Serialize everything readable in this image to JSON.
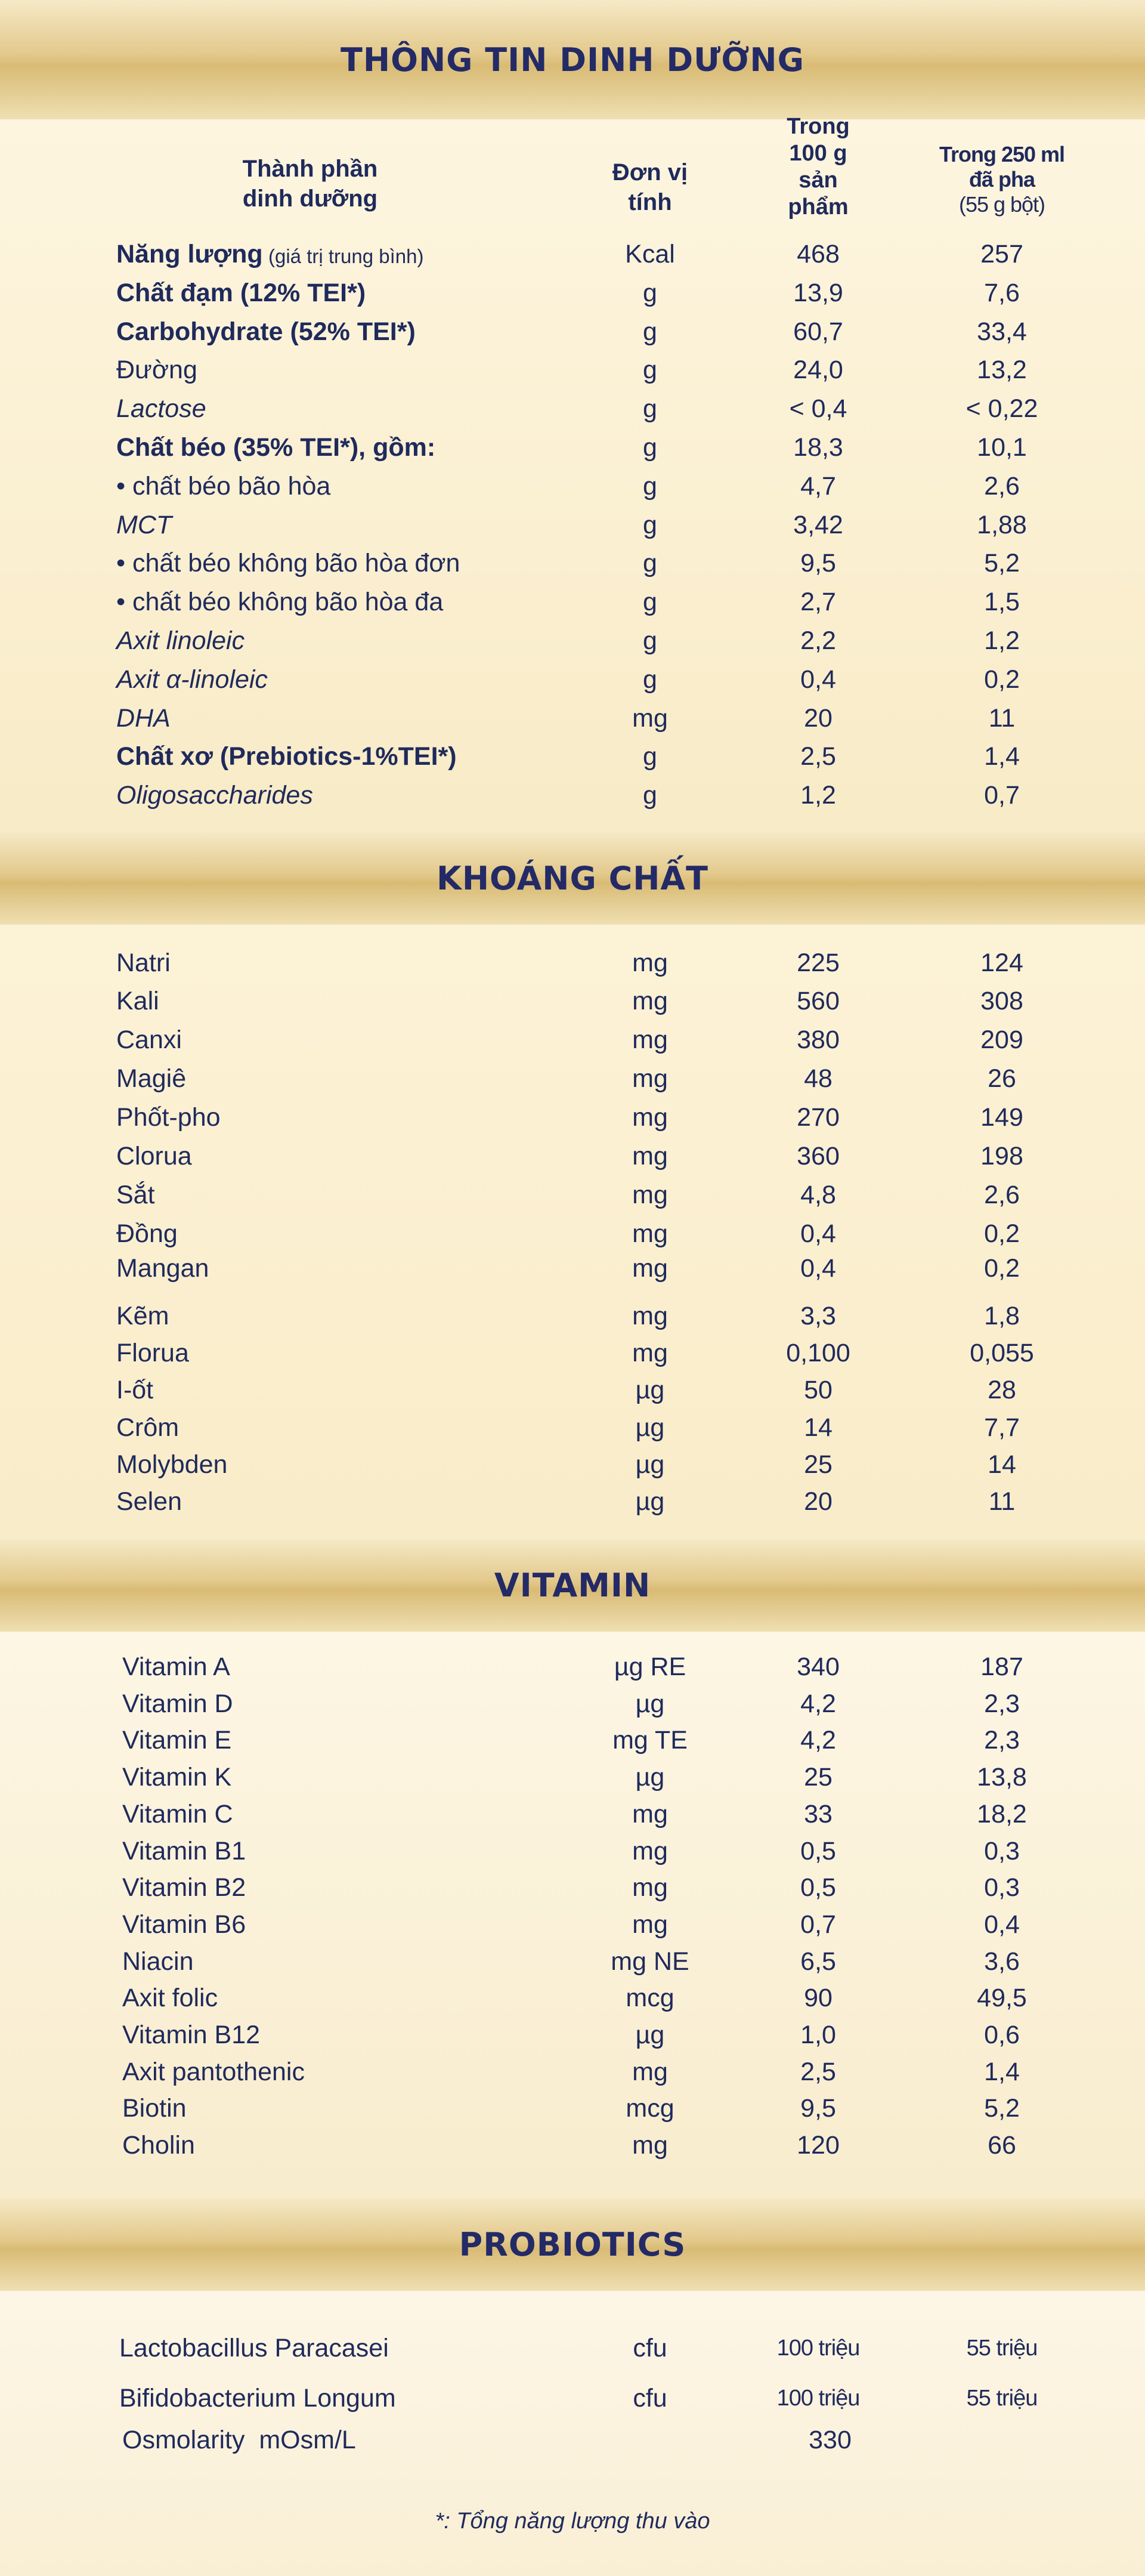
{
  "sections": {
    "main": "THÔNG TIN DINH DƯỠNG",
    "minerals": "KHOÁNG CHẤT",
    "vitamins": "VITAMIN",
    "probiotics": "PROBIOTICS"
  },
  "headers": {
    "name": [
      "Thành phần",
      "dinh dưỡng"
    ],
    "unit": [
      "Đơn vị",
      "tính"
    ],
    "per100": [
      "Trong",
      "100 g",
      "sản",
      "phẩm"
    ],
    "per250": [
      "Trong 250 ml",
      "đã pha",
      "(55 g bột)"
    ]
  },
  "nutrition": [
    {
      "name": "Năng lượng",
      "note": "(giá trị trung bình)",
      "unit": "Kcal",
      "v1": "468",
      "v2": "257"
    },
    {
      "name": "Chất đạm (12% TEI*)",
      "unit": "g",
      "v1": "13,9",
      "v2": "7,6"
    },
    {
      "name": "Carbohydrate (52% TEI*)",
      "unit": "g",
      "v1": "60,7",
      "v2": "33,4"
    },
    {
      "name": "Đường",
      "unit": "g",
      "v1": "24,0",
      "v2": "13,2"
    },
    {
      "name": "Lactose",
      "unit": "g",
      "v1": "< 0,4",
      "v2": "< 0,22"
    },
    {
      "name": "Chất béo (35% TEI*), gồm:",
      "unit": "g",
      "v1": "18,3",
      "v2": "10,1"
    },
    {
      "name": "• chất béo bão hòa",
      "unit": "g",
      "v1": "4,7",
      "v2": "2,6"
    },
    {
      "name": "MCT",
      "unit": "g",
      "v1": "3,42",
      "v2": "1,88"
    },
    {
      "name": "• chất béo không bão hòa đơn",
      "unit": "g",
      "v1": "9,5",
      "v2": "5,2"
    },
    {
      "name": "• chất béo không bão hòa đa",
      "unit": "g",
      "v1": "2,7",
      "v2": "1,5"
    },
    {
      "name": "Axit linoleic",
      "unit": "g",
      "v1": "2,2",
      "v2": "1,2"
    },
    {
      "name": "Axit α-linoleic",
      "unit": "g",
      "v1": "0,4",
      "v2": "0,2"
    },
    {
      "name": "DHA",
      "unit": "mg",
      "v1": "20",
      "v2": "11"
    },
    {
      "name": "Chất xơ (Prebiotics-1%TEI*)",
      "unit": "g",
      "v1": "2,5",
      "v2": "1,4"
    },
    {
      "name": "Oligosaccharides",
      "unit": "g",
      "v1": "1,2",
      "v2": "0,7"
    }
  ],
  "minerals": [
    {
      "name": "Natri",
      "unit": "mg",
      "v1": "225",
      "v2": "124"
    },
    {
      "name": "Kali",
      "unit": "mg",
      "v1": "560",
      "v2": "308"
    },
    {
      "name": "Canxi",
      "unit": "mg",
      "v1": "380",
      "v2": "209"
    },
    {
      "name": "Magiê",
      "unit": "mg",
      "v1": "48",
      "v2": "26"
    },
    {
      "name": "Phốt-pho",
      "unit": "mg",
      "v1": "270",
      "v2": "149"
    },
    {
      "name": "Clorua",
      "unit": "mg",
      "v1": "360",
      "v2": "198"
    },
    {
      "name": "Sắt",
      "unit": "mg",
      "v1": "4,8",
      "v2": "2,6"
    },
    {
      "name": "Đồng",
      "unit": "mg",
      "v1": "0,4",
      "v2": "0,2"
    },
    {
      "name": "Mangan",
      "unit": "mg",
      "v1": "0,4",
      "v2": "0,2"
    },
    {
      "name": "Kẽm",
      "unit": "mg",
      "v1": "3,3",
      "v2": "1,8"
    },
    {
      "name": "Florua",
      "unit": "mg",
      "v1": "0,100",
      "v2": "0,055"
    },
    {
      "name": "I-ốt",
      "unit": "µg",
      "v1": "50",
      "v2": "28"
    },
    {
      "name": "Crôm",
      "unit": "µg",
      "v1": "14",
      "v2": "7,7"
    },
    {
      "name": "Molybden",
      "unit": "µg",
      "v1": "25",
      "v2": "14"
    },
    {
      "name": "Selen",
      "unit": "µg",
      "v1": "20",
      "v2": "11"
    }
  ],
  "vitamins": [
    {
      "name": "Vitamin A",
      "unit": "µg RE",
      "v1": "340",
      "v2": "187"
    },
    {
      "name": "Vitamin D",
      "unit": "µg",
      "v1": "4,2",
      "v2": "2,3"
    },
    {
      "name": "Vitamin E",
      "unit": "mg TE",
      "v1": "4,2",
      "v2": "2,3"
    },
    {
      "name": "Vitamin K",
      "unit": "µg",
      "v1": "25",
      "v2": "13,8"
    },
    {
      "name": "Vitamin C",
      "unit": "mg",
      "v1": "33",
      "v2": "18,2"
    },
    {
      "name": "Vitamin B1",
      "unit": "mg",
      "v1": "0,5",
      "v2": "0,3"
    },
    {
      "name": "Vitamin B2",
      "unit": "mg",
      "v1": "0,5",
      "v2": "0,3"
    },
    {
      "name": "Vitamin B6",
      "unit": "mg",
      "v1": "0,7",
      "v2": "0,4"
    },
    {
      "name": "Niacin",
      "unit": "mg NE",
      "v1": "6,5",
      "v2": "3,6"
    },
    {
      "name": "Axit folic",
      "unit": "mcg",
      "v1": "90",
      "v2": "49,5"
    },
    {
      "name": "Vitamin B12",
      "unit": "µg",
      "v1": "1,0",
      "v2": "0,6"
    },
    {
      "name": "Axit pantothenic",
      "unit": "mg",
      "v1": "2,5",
      "v2": "1,4"
    },
    {
      "name": "Biotin",
      "unit": "mcg",
      "v1": "9,5",
      "v2": "5,2"
    },
    {
      "name": "Cholin",
      "unit": "mg",
      "v1": "120",
      "v2": "66"
    }
  ],
  "probiotics": [
    {
      "name": "Lactobacillus Paracasei",
      "unit": "cfu",
      "v1": "100 triệu",
      "v2": "55 triệu"
    },
    {
      "name": "Bifidobacterium Longum",
      "unit": "cfu",
      "v1": "100 triệu",
      "v2": "55 triệu"
    }
  ],
  "osmolarity": {
    "label": "Osmolarity  mOsm/L",
    "value": "330"
  },
  "footnote": "*: Tổng năng lượng thu vào",
  "colors": {
    "text": "#1f2a5c",
    "title": "#232a66",
    "band_gold": "#d9bb75",
    "background": "#f9efd5"
  }
}
